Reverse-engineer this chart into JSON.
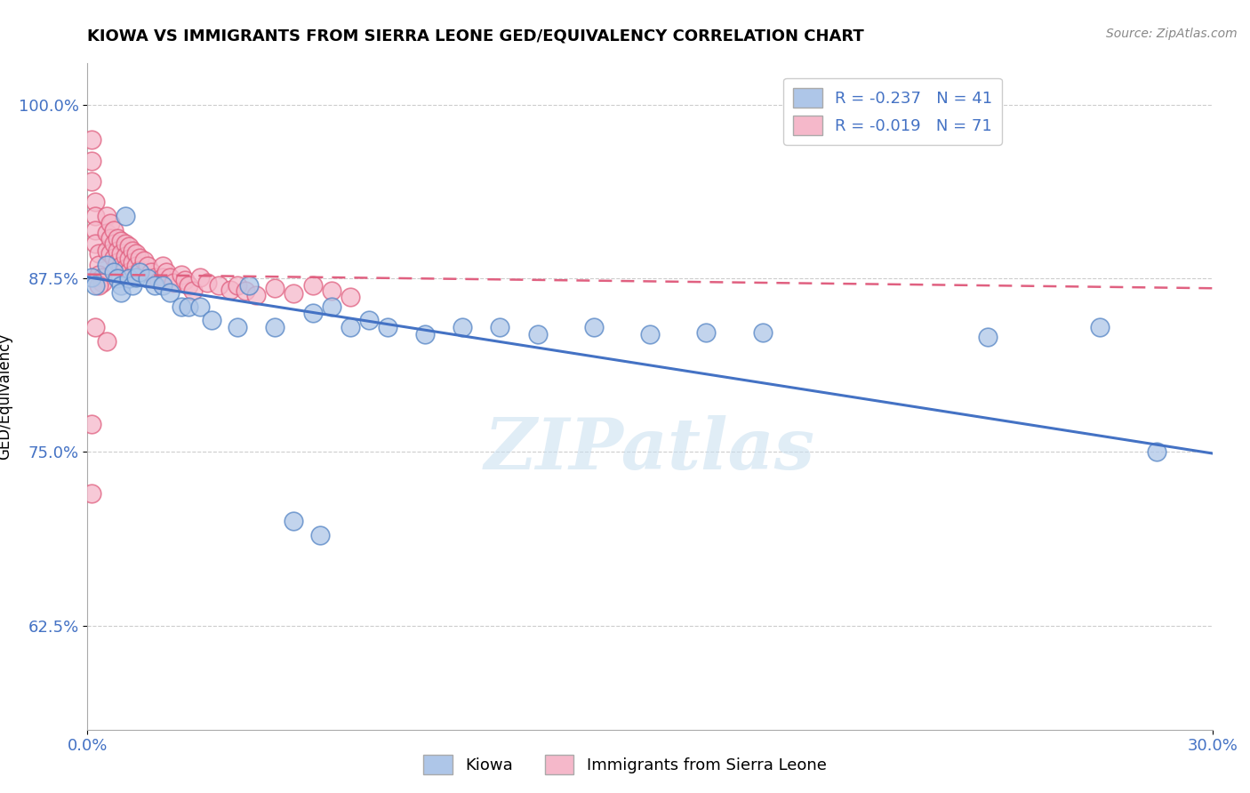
{
  "title": "KIOWA VS IMMIGRANTS FROM SIERRA LEONE GED/EQUIVALENCY CORRELATION CHART",
  "source_text": "Source: ZipAtlas.com",
  "ylabel": "GED/Equivalency",
  "xlim": [
    0.0,
    0.3
  ],
  "ylim": [
    0.55,
    1.03
  ],
  "xticks": [
    0.0,
    0.3
  ],
  "xticklabels": [
    "0.0%",
    "30.0%"
  ],
  "yticks": [
    0.625,
    0.75,
    0.875,
    1.0
  ],
  "yticklabels": [
    "62.5%",
    "75.0%",
    "87.5%",
    "100.0%"
  ],
  "tick_color": "#4472c4",
  "grid_color": "#c8c8c8",
  "background_color": "#ffffff",
  "kiowa_color": "#aec6e8",
  "kiowa_edge_color": "#5585c5",
  "sierra_leone_color": "#f5b8ca",
  "sierra_leone_edge_color": "#e06080",
  "kiowa_R": -0.237,
  "kiowa_N": 41,
  "sierra_leone_R": -0.019,
  "sierra_leone_N": 71,
  "kiowa_line_color": "#4472c4",
  "sierra_leone_line_color": "#e06080",
  "legend_box_color_kiowa": "#aec6e8",
  "legend_box_color_sl": "#f5b8ca",
  "legend_label_kiowa": "Kiowa",
  "legend_label_sl": "Immigrants from Sierra Leone",
  "watermark": "ZIPatlas",
  "kiowa_line_x": [
    0.0,
    0.3
  ],
  "kiowa_line_y": [
    0.876,
    0.749
  ],
  "sierra_leone_line_x": [
    0.0,
    0.3
  ],
  "sierra_leone_line_y": [
    0.878,
    0.868
  ],
  "kiowa_scatter_x": [
    0.001,
    0.002,
    0.005,
    0.007,
    0.008,
    0.009,
    0.009,
    0.01,
    0.011,
    0.012,
    0.013,
    0.014,
    0.016,
    0.018,
    0.02,
    0.022,
    0.025,
    0.027,
    0.03,
    0.033,
    0.04,
    0.043,
    0.05,
    0.06,
    0.065,
    0.07,
    0.075,
    0.08,
    0.09,
    0.1,
    0.11,
    0.12,
    0.135,
    0.15,
    0.165,
    0.18,
    0.055,
    0.062,
    0.24,
    0.27,
    0.285
  ],
  "kiowa_scatter_y": [
    0.876,
    0.87,
    0.885,
    0.88,
    0.875,
    0.87,
    0.865,
    0.92,
    0.875,
    0.87,
    0.876,
    0.88,
    0.875,
    0.87,
    0.87,
    0.865,
    0.855,
    0.855,
    0.855,
    0.845,
    0.84,
    0.87,
    0.84,
    0.85,
    0.855,
    0.84,
    0.845,
    0.84,
    0.835,
    0.84,
    0.84,
    0.835,
    0.84,
    0.835,
    0.836,
    0.836,
    0.7,
    0.69,
    0.833,
    0.84,
    0.75
  ],
  "sl_scatter_x": [
    0.001,
    0.001,
    0.001,
    0.002,
    0.002,
    0.002,
    0.002,
    0.003,
    0.003,
    0.003,
    0.004,
    0.004,
    0.005,
    0.005,
    0.005,
    0.006,
    0.006,
    0.006,
    0.007,
    0.007,
    0.007,
    0.008,
    0.008,
    0.008,
    0.009,
    0.009,
    0.009,
    0.01,
    0.01,
    0.01,
    0.011,
    0.011,
    0.011,
    0.012,
    0.012,
    0.012,
    0.013,
    0.013,
    0.014,
    0.014,
    0.015,
    0.016,
    0.017,
    0.018,
    0.019,
    0.02,
    0.02,
    0.021,
    0.022,
    0.023,
    0.025,
    0.026,
    0.027,
    0.028,
    0.03,
    0.032,
    0.035,
    0.038,
    0.04,
    0.042,
    0.045,
    0.05,
    0.055,
    0.06,
    0.065,
    0.07,
    0.001,
    0.001,
    0.002,
    0.003,
    0.005
  ],
  "sl_scatter_y": [
    0.975,
    0.96,
    0.945,
    0.93,
    0.92,
    0.91,
    0.9,
    0.893,
    0.885,
    0.878,
    0.876,
    0.872,
    0.92,
    0.908,
    0.895,
    0.915,
    0.904,
    0.893,
    0.91,
    0.9,
    0.89,
    0.904,
    0.895,
    0.887,
    0.902,
    0.893,
    0.884,
    0.9,
    0.891,
    0.882,
    0.898,
    0.889,
    0.88,
    0.895,
    0.887,
    0.878,
    0.893,
    0.884,
    0.89,
    0.881,
    0.888,
    0.884,
    0.88,
    0.876,
    0.873,
    0.884,
    0.876,
    0.88,
    0.876,
    0.872,
    0.878,
    0.874,
    0.87,
    0.866,
    0.876,
    0.872,
    0.87,
    0.867,
    0.87,
    0.866,
    0.863,
    0.868,
    0.864,
    0.87,
    0.866,
    0.862,
    0.77,
    0.72,
    0.84,
    0.87,
    0.83
  ]
}
